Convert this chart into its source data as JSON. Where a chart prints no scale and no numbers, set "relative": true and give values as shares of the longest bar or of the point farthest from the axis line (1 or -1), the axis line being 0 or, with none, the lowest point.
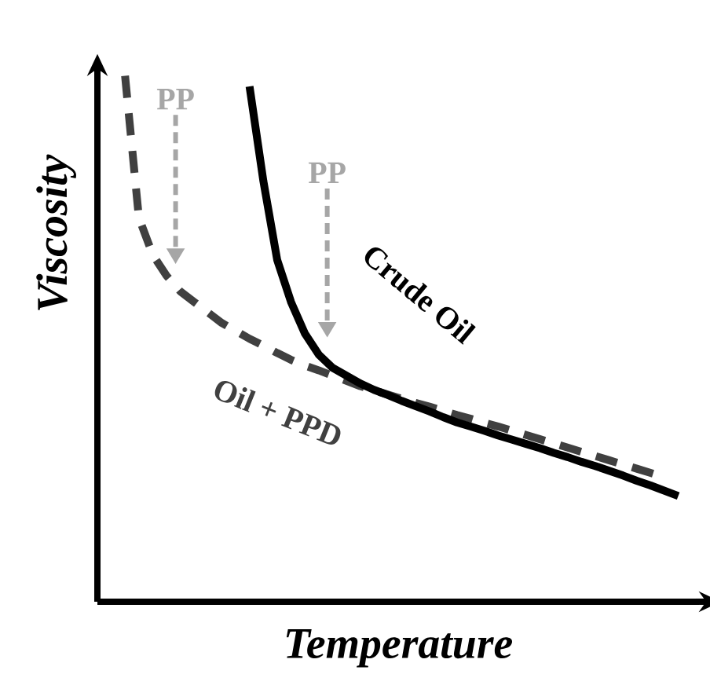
{
  "chart_data": {
    "type": "line",
    "relative": true,
    "xlabel": "Temperature",
    "ylabel": "Viscosity",
    "legend": false,
    "marker": "none",
    "categories": [
      null,
      null,
      null,
      null,
      null,
      null,
      null,
      null,
      null,
      null,
      null,
      null,
      null,
      null,
      null,
      null,
      null,
      null,
      null,
      null,
      null,
      null,
      null,
      null,
      null,
      null,
      null,
      null,
      null,
      null,
      null,
      null,
      null,
      null,
      null,
      null,
      null,
      null,
      null,
      null,
      null
    ],
    "series": [
      {
        "name": "Oil + PPD",
        "color": "#404040",
        "line_style": "dashed",
        "values": [
          1.0,
          0.73,
          0.66,
          0.62,
          0.59,
          0.57,
          0.55,
          0.53,
          0.515,
          0.5,
          0.487,
          0.473,
          0.46,
          0.449,
          0.44,
          0.43,
          0.42,
          0.41,
          0.402,
          0.394,
          0.386,
          0.378,
          0.371,
          0.363,
          0.355,
          0.348,
          0.34,
          0.333,
          0.325,
          0.317,
          0.309,
          0.301,
          0.293,
          0.285,
          0.277,
          0.269,
          0.261,
          0.253,
          0.245,
          0.237,
          null
        ]
      },
      {
        "name": "Crude Oil",
        "color": "#000000",
        "line_style": "solid",
        "values": [
          null,
          null,
          null,
          null,
          null,
          null,
          null,
          null,
          null,
          0.98,
          0.8,
          0.65,
          0.57,
          0.51,
          0.47,
          0.445,
          0.43,
          0.415,
          0.403,
          0.393,
          0.382,
          0.372,
          0.362,
          0.351,
          0.341,
          0.333,
          0.325,
          0.316,
          0.308,
          0.3,
          0.292,
          0.283,
          0.275,
          0.266,
          0.258,
          0.249,
          0.24,
          0.23,
          0.221,
          0.211,
          0.201
        ]
      }
    ],
    "annotations": [
      "PP",
      "PP"
    ]
  }
}
